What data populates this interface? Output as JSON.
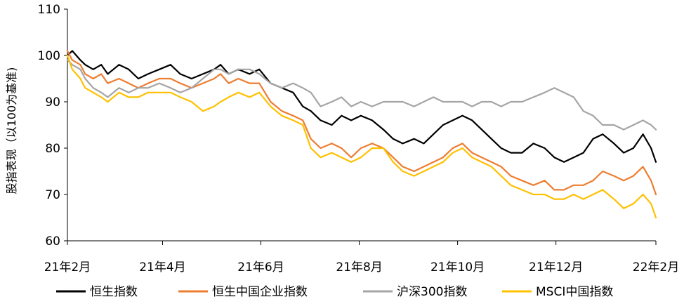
{
  "chart_data": {
    "type": "line",
    "title": "",
    "xlabel": "",
    "ylabel": "股指表现（以100为基准)",
    "ylim": [
      60,
      110
    ],
    "yticks": [
      60,
      70,
      80,
      90,
      100,
      110
    ],
    "xlim": [
      "2021-02-01",
      "2022-02-01"
    ],
    "xticks": [
      {
        "date": "2021-02-01",
        "label": "21年2月"
      },
      {
        "date": "2021-04-01",
        "label": "21年4月"
      },
      {
        "date": "2021-06-01",
        "label": "21年6月"
      },
      {
        "date": "2021-08-01",
        "label": "21年8月"
      },
      {
        "date": "2021-10-01",
        "label": "21年10月"
      },
      {
        "date": "2021-12-01",
        "label": "21年12月"
      },
      {
        "date": "2022-02-01",
        "label": "22年2月"
      }
    ],
    "grid": false,
    "legend_position": "bottom",
    "series": [
      {
        "name": "恒生指数",
        "color": "#000000",
        "points": [
          [
            "2021-02-01",
            100
          ],
          [
            "2021-02-04",
            101
          ],
          [
            "2021-02-09",
            99
          ],
          [
            "2021-02-12",
            98
          ],
          [
            "2021-02-17",
            97
          ],
          [
            "2021-02-22",
            98
          ],
          [
            "2021-02-26",
            96
          ],
          [
            "2021-03-05",
            98
          ],
          [
            "2021-03-11",
            97
          ],
          [
            "2021-03-17",
            95
          ],
          [
            "2021-03-23",
            96
          ],
          [
            "2021-03-30",
            97
          ],
          [
            "2021-04-06",
            98
          ],
          [
            "2021-04-12",
            96
          ],
          [
            "2021-04-19",
            95
          ],
          [
            "2021-04-26",
            96
          ],
          [
            "2021-05-03",
            97
          ],
          [
            "2021-05-07",
            98
          ],
          [
            "2021-05-12",
            96
          ],
          [
            "2021-05-18",
            97
          ],
          [
            "2021-05-25",
            96
          ],
          [
            "2021-05-31",
            97
          ],
          [
            "2021-06-07",
            94
          ],
          [
            "2021-06-14",
            93
          ],
          [
            "2021-06-21",
            92
          ],
          [
            "2021-06-27",
            89
          ],
          [
            "2021-07-02",
            88
          ],
          [
            "2021-07-08",
            86
          ],
          [
            "2021-07-15",
            85
          ],
          [
            "2021-07-21",
            87
          ],
          [
            "2021-07-27",
            86
          ],
          [
            "2021-08-02",
            87
          ],
          [
            "2021-08-09",
            86
          ],
          [
            "2021-08-16",
            84
          ],
          [
            "2021-08-22",
            82
          ],
          [
            "2021-08-28",
            81
          ],
          [
            "2021-09-04",
            82
          ],
          [
            "2021-09-10",
            81
          ],
          [
            "2021-09-16",
            83
          ],
          [
            "2021-09-22",
            85
          ],
          [
            "2021-09-28",
            86
          ],
          [
            "2021-10-04",
            87
          ],
          [
            "2021-10-10",
            86
          ],
          [
            "2021-10-16",
            84
          ],
          [
            "2021-10-22",
            82
          ],
          [
            "2021-10-28",
            80
          ],
          [
            "2021-11-03",
            79
          ],
          [
            "2021-11-10",
            79
          ],
          [
            "2021-11-17",
            81
          ],
          [
            "2021-11-24",
            80
          ],
          [
            "2021-11-30",
            78
          ],
          [
            "2021-12-06",
            77
          ],
          [
            "2021-12-12",
            78
          ],
          [
            "2021-12-18",
            79
          ],
          [
            "2021-12-24",
            82
          ],
          [
            "2021-12-30",
            83
          ],
          [
            "2022-01-06",
            81
          ],
          [
            "2022-01-12",
            79
          ],
          [
            "2022-01-18",
            80
          ],
          [
            "2022-01-24",
            83
          ],
          [
            "2022-01-29",
            80
          ],
          [
            "2022-02-01",
            77
          ]
        ]
      },
      {
        "name": "恒生中国企业指数",
        "color": "#ED7D31",
        "points": [
          [
            "2021-02-01",
            101
          ],
          [
            "2021-02-04",
            99
          ],
          [
            "2021-02-09",
            98
          ],
          [
            "2021-02-12",
            96
          ],
          [
            "2021-02-17",
            95
          ],
          [
            "2021-02-22",
            96
          ],
          [
            "2021-02-26",
            94
          ],
          [
            "2021-03-05",
            95
          ],
          [
            "2021-03-11",
            94
          ],
          [
            "2021-03-17",
            93
          ],
          [
            "2021-03-23",
            94
          ],
          [
            "2021-03-30",
            95
          ],
          [
            "2021-04-06",
            95
          ],
          [
            "2021-04-12",
            94
          ],
          [
            "2021-04-19",
            93
          ],
          [
            "2021-04-26",
            94
          ],
          [
            "2021-05-03",
            95
          ],
          [
            "2021-05-07",
            96
          ],
          [
            "2021-05-12",
            94
          ],
          [
            "2021-05-18",
            95
          ],
          [
            "2021-05-25",
            94
          ],
          [
            "2021-05-31",
            94
          ],
          [
            "2021-06-07",
            90
          ],
          [
            "2021-06-14",
            88
          ],
          [
            "2021-06-21",
            87
          ],
          [
            "2021-06-27",
            86
          ],
          [
            "2021-07-02",
            82
          ],
          [
            "2021-07-08",
            80
          ],
          [
            "2021-07-15",
            81
          ],
          [
            "2021-07-21",
            80
          ],
          [
            "2021-07-27",
            78
          ],
          [
            "2021-08-02",
            80
          ],
          [
            "2021-08-09",
            81
          ],
          [
            "2021-08-16",
            80
          ],
          [
            "2021-08-22",
            78
          ],
          [
            "2021-08-28",
            76
          ],
          [
            "2021-09-04",
            75
          ],
          [
            "2021-09-10",
            76
          ],
          [
            "2021-09-16",
            77
          ],
          [
            "2021-09-22",
            78
          ],
          [
            "2021-09-28",
            80
          ],
          [
            "2021-10-04",
            81
          ],
          [
            "2021-10-10",
            79
          ],
          [
            "2021-10-16",
            78
          ],
          [
            "2021-10-22",
            77
          ],
          [
            "2021-10-28",
            76
          ],
          [
            "2021-11-03",
            74
          ],
          [
            "2021-11-10",
            73
          ],
          [
            "2021-11-17",
            72
          ],
          [
            "2021-11-24",
            73
          ],
          [
            "2021-11-30",
            71
          ],
          [
            "2021-12-06",
            71
          ],
          [
            "2021-12-12",
            72
          ],
          [
            "2021-12-18",
            72
          ],
          [
            "2021-12-24",
            73
          ],
          [
            "2021-12-30",
            75
          ],
          [
            "2022-01-06",
            74
          ],
          [
            "2022-01-12",
            73
          ],
          [
            "2022-01-18",
            74
          ],
          [
            "2022-01-24",
            76
          ],
          [
            "2022-01-29",
            73
          ],
          [
            "2022-02-01",
            70
          ]
        ]
      },
      {
        "name": "沪深300指数",
        "color": "#A5A5A5",
        "points": [
          [
            "2021-02-01",
            99
          ],
          [
            "2021-02-04",
            98
          ],
          [
            "2021-02-09",
            97
          ],
          [
            "2021-02-12",
            95
          ],
          [
            "2021-02-17",
            93
          ],
          [
            "2021-02-22",
            92
          ],
          [
            "2021-02-26",
            91
          ],
          [
            "2021-03-05",
            93
          ],
          [
            "2021-03-11",
            92
          ],
          [
            "2021-03-17",
            93
          ],
          [
            "2021-03-23",
            93
          ],
          [
            "2021-03-30",
            94
          ],
          [
            "2021-04-06",
            93
          ],
          [
            "2021-04-12",
            92
          ],
          [
            "2021-04-19",
            93
          ],
          [
            "2021-04-26",
            95
          ],
          [
            "2021-05-03",
            97
          ],
          [
            "2021-05-07",
            97
          ],
          [
            "2021-05-12",
            96
          ],
          [
            "2021-05-18",
            97
          ],
          [
            "2021-05-25",
            97
          ],
          [
            "2021-05-31",
            96
          ],
          [
            "2021-06-07",
            94
          ],
          [
            "2021-06-14",
            93
          ],
          [
            "2021-06-21",
            94
          ],
          [
            "2021-06-27",
            93
          ],
          [
            "2021-07-02",
            92
          ],
          [
            "2021-07-08",
            89
          ],
          [
            "2021-07-15",
            90
          ],
          [
            "2021-07-21",
            91
          ],
          [
            "2021-07-27",
            89
          ],
          [
            "2021-08-02",
            90
          ],
          [
            "2021-08-09",
            89
          ],
          [
            "2021-08-16",
            90
          ],
          [
            "2021-08-22",
            90
          ],
          [
            "2021-08-28",
            90
          ],
          [
            "2021-09-04",
            89
          ],
          [
            "2021-09-10",
            90
          ],
          [
            "2021-09-16",
            91
          ],
          [
            "2021-09-22",
            90
          ],
          [
            "2021-09-28",
            90
          ],
          [
            "2021-10-04",
            90
          ],
          [
            "2021-10-10",
            89
          ],
          [
            "2021-10-16",
            90
          ],
          [
            "2021-10-22",
            90
          ],
          [
            "2021-10-28",
            89
          ],
          [
            "2021-11-03",
            90
          ],
          [
            "2021-11-10",
            90
          ],
          [
            "2021-11-17",
            91
          ],
          [
            "2021-11-24",
            92
          ],
          [
            "2021-11-30",
            93
          ],
          [
            "2021-12-06",
            92
          ],
          [
            "2021-12-12",
            91
          ],
          [
            "2021-12-18",
            88
          ],
          [
            "2021-12-24",
            87
          ],
          [
            "2021-12-30",
            85
          ],
          [
            "2022-01-06",
            85
          ],
          [
            "2022-01-12",
            84
          ],
          [
            "2022-01-18",
            85
          ],
          [
            "2022-01-24",
            86
          ],
          [
            "2022-01-29",
            85
          ],
          [
            "2022-02-01",
            84
          ]
        ]
      },
      {
        "name": "MSCI中国指数",
        "color": "#FFC000",
        "points": [
          [
            "2021-02-01",
            100
          ],
          [
            "2021-02-04",
            97
          ],
          [
            "2021-02-09",
            95
          ],
          [
            "2021-02-12",
            93
          ],
          [
            "2021-02-17",
            92
          ],
          [
            "2021-02-22",
            91
          ],
          [
            "2021-02-26",
            90
          ],
          [
            "2021-03-05",
            92
          ],
          [
            "2021-03-11",
            91
          ],
          [
            "2021-03-17",
            91
          ],
          [
            "2021-03-23",
            92
          ],
          [
            "2021-03-30",
            92
          ],
          [
            "2021-04-06",
            92
          ],
          [
            "2021-04-12",
            91
          ],
          [
            "2021-04-19",
            90
          ],
          [
            "2021-04-26",
            88
          ],
          [
            "2021-05-03",
            89
          ],
          [
            "2021-05-07",
            90
          ],
          [
            "2021-05-12",
            91
          ],
          [
            "2021-05-18",
            92
          ],
          [
            "2021-05-25",
            91
          ],
          [
            "2021-05-31",
            92
          ],
          [
            "2021-06-07",
            89
          ],
          [
            "2021-06-14",
            87
          ],
          [
            "2021-06-21",
            86
          ],
          [
            "2021-06-27",
            85
          ],
          [
            "2021-07-02",
            80
          ],
          [
            "2021-07-08",
            78
          ],
          [
            "2021-07-15",
            79
          ],
          [
            "2021-07-21",
            78
          ],
          [
            "2021-07-27",
            77
          ],
          [
            "2021-08-02",
            78
          ],
          [
            "2021-08-09",
            80
          ],
          [
            "2021-08-16",
            80
          ],
          [
            "2021-08-22",
            77
          ],
          [
            "2021-08-28",
            75
          ],
          [
            "2021-09-04",
            74
          ],
          [
            "2021-09-10",
            75
          ],
          [
            "2021-09-16",
            76
          ],
          [
            "2021-09-22",
            77
          ],
          [
            "2021-09-28",
            79
          ],
          [
            "2021-10-04",
            80
          ],
          [
            "2021-10-10",
            78
          ],
          [
            "2021-10-16",
            77
          ],
          [
            "2021-10-22",
            76
          ],
          [
            "2021-10-28",
            74
          ],
          [
            "2021-11-03",
            72
          ],
          [
            "2021-11-10",
            71
          ],
          [
            "2021-11-17",
            70
          ],
          [
            "2021-11-24",
            70
          ],
          [
            "2021-11-30",
            69
          ],
          [
            "2021-12-06",
            69
          ],
          [
            "2021-12-12",
            70
          ],
          [
            "2021-12-18",
            69
          ],
          [
            "2021-12-24",
            70
          ],
          [
            "2021-12-30",
            71
          ],
          [
            "2022-01-06",
            69
          ],
          [
            "2022-01-12",
            67
          ],
          [
            "2022-01-18",
            68
          ],
          [
            "2022-01-24",
            70
          ],
          [
            "2022-01-29",
            68
          ],
          [
            "2022-02-01",
            65
          ]
        ]
      }
    ]
  }
}
